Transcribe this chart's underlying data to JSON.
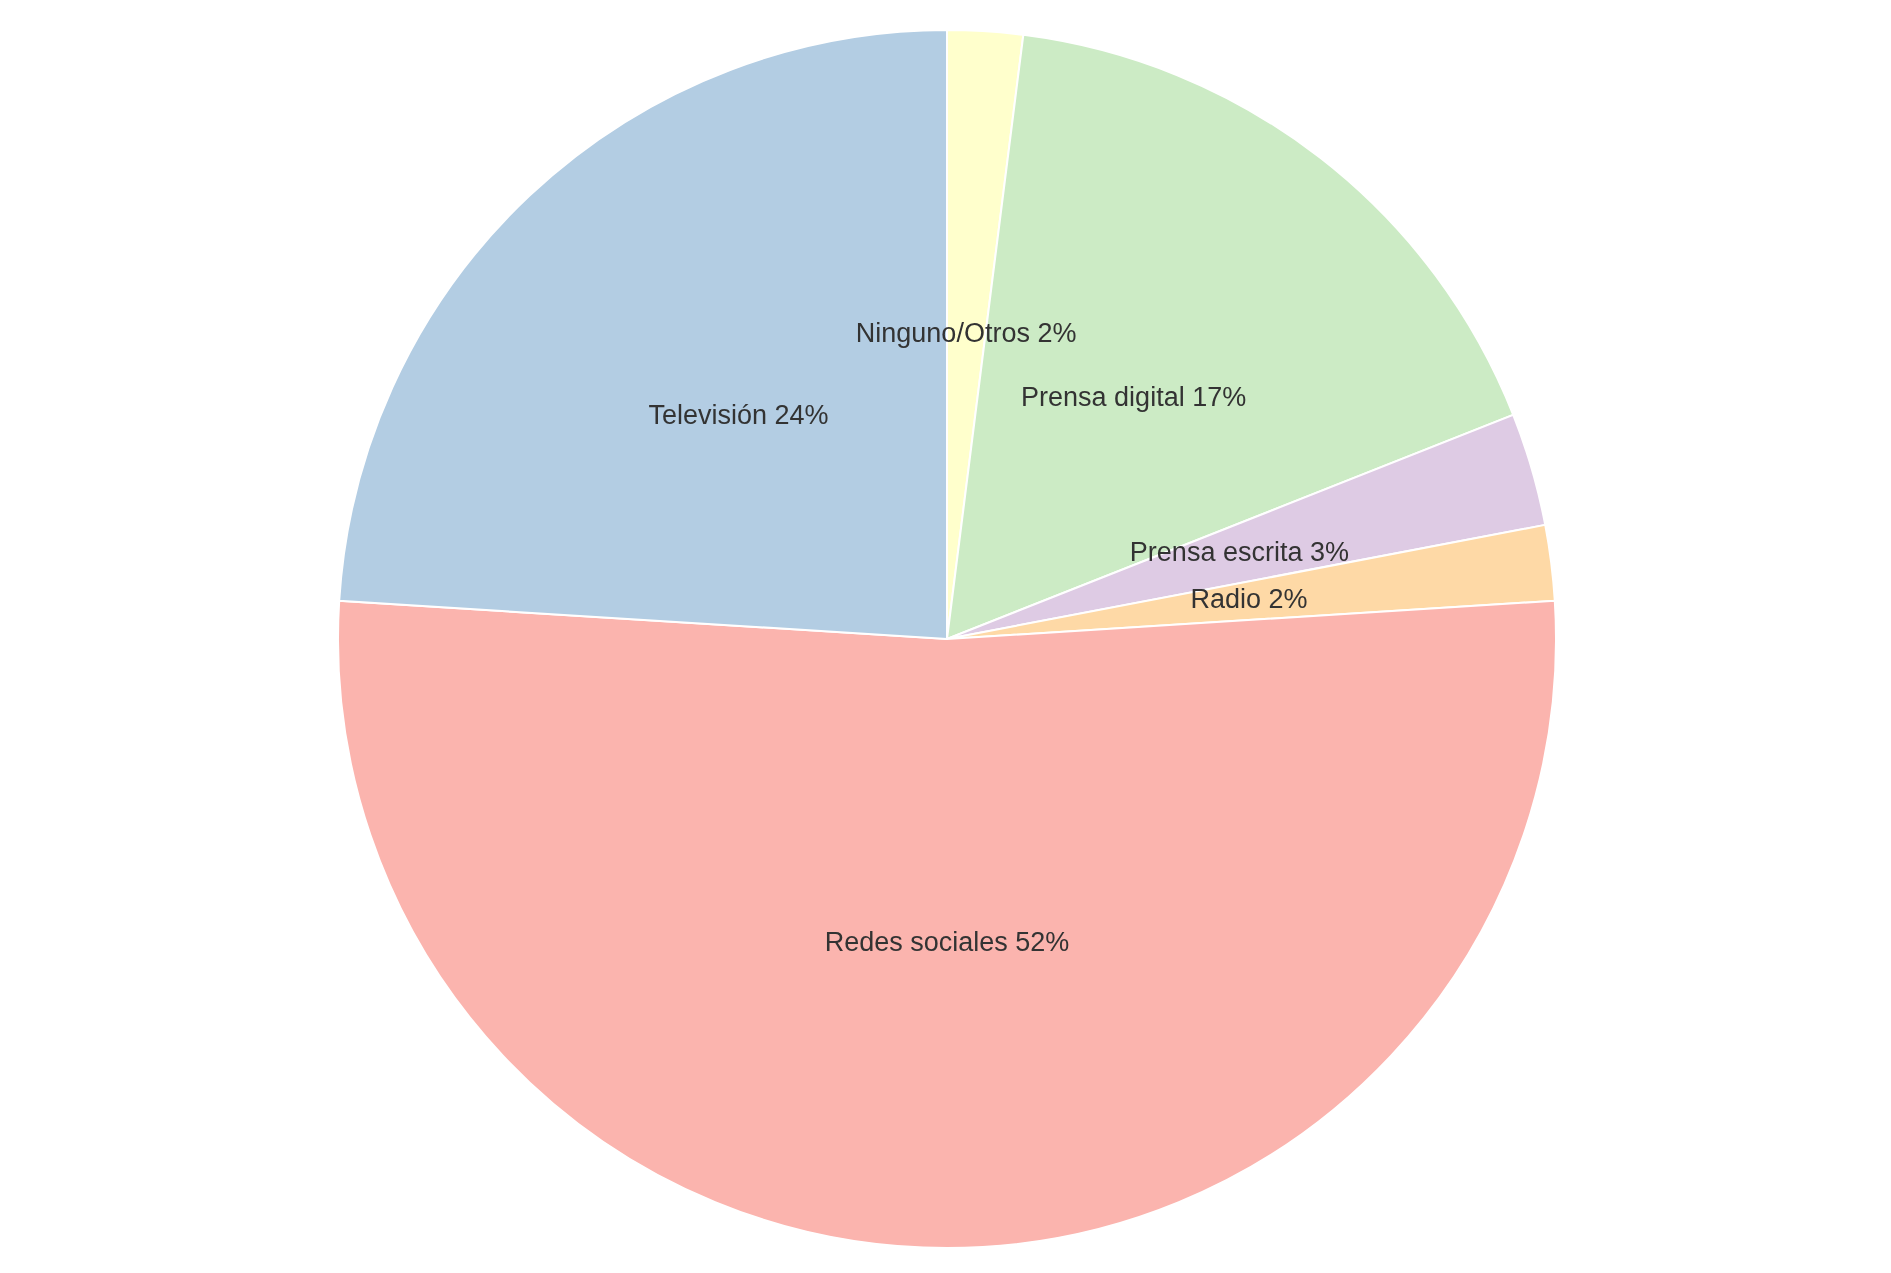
{
  "chart_data": {
    "type": "pie",
    "categories": [
      "Ninguno/Otros",
      "Prensa digital",
      "Prensa escrita",
      "Radio",
      "Redes sociales",
      "Televisión"
    ],
    "values": [
      2,
      17,
      3,
      2,
      52,
      24
    ],
    "colors": [
      "#ffffcc",
      "#ccebc5",
      "#decbe4",
      "#fed9a6",
      "#fbb4ae",
      "#b3cde3"
    ],
    "value_labels": [
      "2%",
      "17%",
      "3%",
      "2%",
      "52%",
      "24%"
    ]
  }
}
